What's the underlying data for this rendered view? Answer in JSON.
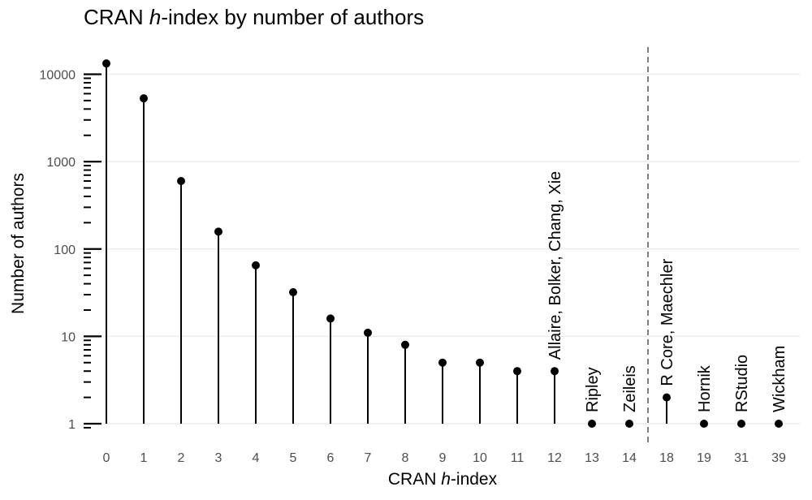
{
  "chart_data": {
    "type": "lollipop",
    "title_pre": "CRAN ",
    "title_italic": "h",
    "title_post": "-index by number of authors",
    "xlabel_pre": "CRAN ",
    "xlabel_italic": "h",
    "xlabel_post": "-index",
    "ylabel": "Number of authors",
    "y_scale": "log10",
    "ylim": [
      0.85,
      15000
    ],
    "y_ticks": [
      1,
      10,
      100,
      1000,
      10000
    ],
    "y_tick_labels": [
      "1",
      "10",
      "100",
      "1000",
      "10000"
    ],
    "categories": [
      "0",
      "1",
      "2",
      "3",
      "4",
      "5",
      "6",
      "7",
      "8",
      "9",
      "10",
      "11",
      "12",
      "13",
      "14",
      "18",
      "19",
      "31",
      "39"
    ],
    "values": [
      13300,
      5300,
      600,
      158,
      65,
      32,
      16,
      11,
      8,
      5,
      5,
      4,
      4,
      1,
      1,
      2,
      1,
      1,
      1
    ],
    "divider_after_category": "14",
    "annotations": [
      {
        "category": "12",
        "label": "Allaire, Bolker, Chang, Xie"
      },
      {
        "category": "13",
        "label": "Ripley"
      },
      {
        "category": "14",
        "label": "Zeileis"
      },
      {
        "category": "18",
        "label": "R Core, Maechler"
      },
      {
        "category": "19",
        "label": "Hornik"
      },
      {
        "category": "31",
        "label": "RStudio"
      },
      {
        "category": "39",
        "label": "Wickham"
      }
    ],
    "grid": "horizontal-major",
    "colors": {
      "marks": "#000000",
      "grid": "#ebebeb",
      "divider": "#7f7f7f",
      "tick_text": "#4d4d4d"
    }
  }
}
